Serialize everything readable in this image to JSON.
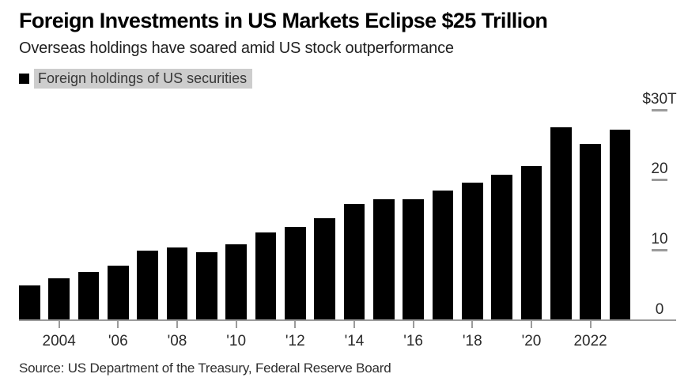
{
  "header": {
    "title": "Foreign Investments in US Markets Eclipse $25 Trillion",
    "subtitle": "Overseas holdings have soared amid US stock outperformance"
  },
  "legend": {
    "label": "Foreign holdings of US securities",
    "swatch_color": "#000000",
    "highlight_color": "#cdcdcd"
  },
  "source": "Source: US Department of the Treasury, Federal Reserve Board",
  "colors": {
    "bar": "#000000",
    "axis": "#9b9b9b",
    "tick_text": "#2a2a2a"
  },
  "chart_data": {
    "type": "bar",
    "title": "Foreign Investments in US Markets Eclipse $25 Trillion",
    "subtitle": "Overseas holdings have soared amid US stock outperformance",
    "series_name": "Foreign holdings of US securities",
    "units": "USD trillions",
    "categories": [
      2003,
      2004,
      2005,
      2006,
      2007,
      2008,
      2009,
      2010,
      2011,
      2012,
      2013,
      2014,
      2015,
      2016,
      2017,
      2018,
      2019,
      2020,
      2021,
      2022,
      2023
    ],
    "values": [
      4.8,
      5.9,
      6.8,
      7.7,
      9.8,
      10.3,
      9.6,
      10.7,
      12.4,
      13.2,
      14.4,
      16.4,
      17.1,
      17.1,
      18.4,
      19.5,
      20.6,
      21.9,
      27.4,
      25.0,
      27.0
    ],
    "ylim": [
      0,
      30
    ],
    "y_ticks": [
      {
        "label": "$30T",
        "value": 30
      },
      {
        "label": "20",
        "value": 20
      },
      {
        "label": "10",
        "value": 10
      },
      {
        "label": "0",
        "value": 0
      }
    ],
    "x_ticks": [
      {
        "label": "2004",
        "year": 2004
      },
      {
        "label": "'06",
        "year": 2006
      },
      {
        "label": "'08",
        "year": 2008
      },
      {
        "label": "'10",
        "year": 2010
      },
      {
        "label": "'12",
        "year": 2012
      },
      {
        "label": "'14",
        "year": 2014
      },
      {
        "label": "'16",
        "year": 2016
      },
      {
        "label": "'18",
        "year": 2018
      },
      {
        "label": "'20",
        "year": 2020
      },
      {
        "label": "2022",
        "year": 2022
      }
    ],
    "bar_color": "#000000",
    "grid": "off",
    "legend_position": "top-left",
    "y_axis_side": "right"
  }
}
